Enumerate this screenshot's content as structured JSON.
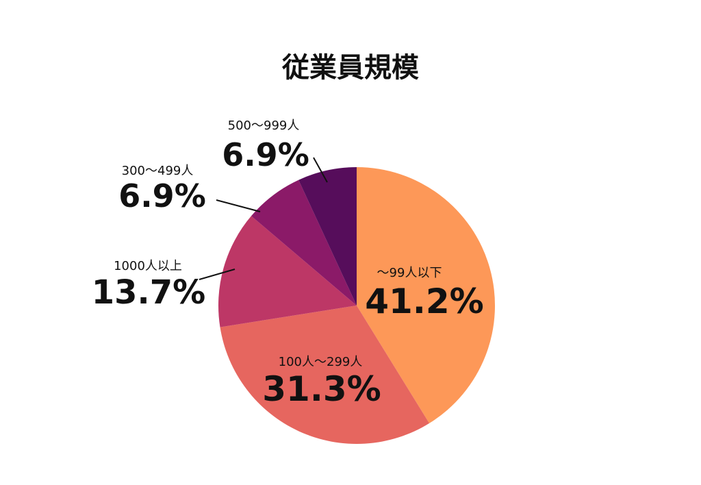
{
  "chart_data": {
    "type": "pie",
    "title": "従業員規模",
    "slices": [
      {
        "label": "〜99人以下",
        "value": 41.2,
        "value_label": "41.2%",
        "color": "#fd9858"
      },
      {
        "label": "100人〜299人",
        "value": 31.3,
        "value_label": "31.3%",
        "color": "#e6665f"
      },
      {
        "label": "1000人以上",
        "value": 13.7,
        "value_label": "13.7%",
        "color": "#bd3766"
      },
      {
        "label": "300〜499人",
        "value": 6.9,
        "value_label": "6.9%",
        "color": "#8b1a68"
      },
      {
        "label": "500〜999人",
        "value": 6.9,
        "value_label": "6.9%",
        "color": "#560d5b"
      }
    ],
    "start": "12 o'clock",
    "direction": "clockwise",
    "legend": "none"
  }
}
